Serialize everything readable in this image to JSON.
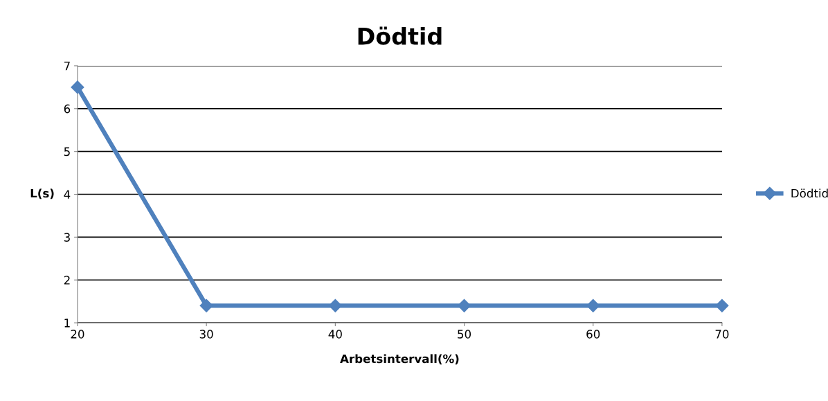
{
  "chart_data": {
    "type": "line",
    "title": "Dödtid",
    "xlabel": "Arbetsintervall(%)",
    "ylabel": "L(s)",
    "x": [
      20,
      30,
      40,
      50,
      60,
      70
    ],
    "series": [
      {
        "name": "Dödtid",
        "color": "#4f81bd",
        "values": [
          6.5,
          1.4,
          1.4,
          1.4,
          1.4,
          1.4
        ]
      }
    ],
    "xlim": [
      20,
      70
    ],
    "xticks": [
      20,
      30,
      40,
      50,
      60,
      70
    ],
    "ylim": [
      1,
      7
    ],
    "yticks": [
      1,
      2,
      3,
      4,
      5,
      6,
      7
    ],
    "grid": "y",
    "legend": "right",
    "marker": "diamond",
    "line_style": "solid"
  }
}
